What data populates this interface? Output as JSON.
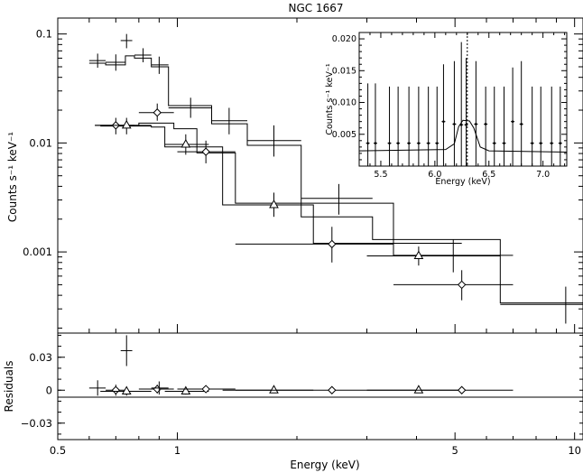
{
  "chart_data": {
    "type": "scatter",
    "title": "NGC 1667",
    "xlabel": "Energy (keV)",
    "ylabel": "Counts s⁻¹ keV⁻¹",
    "xscale": "log",
    "yscale": "log",
    "xlim": [
      0.5,
      10.5
    ],
    "ylim": [
      0.00018,
      0.14
    ],
    "xticks": [
      {
        "v": 0.5,
        "label": "0.5"
      },
      {
        "v": 1,
        "label": "1"
      },
      {
        "v": 5,
        "label": "5"
      },
      {
        "v": 10,
        "label": "10"
      }
    ],
    "yticks": [
      {
        "v": 0.1,
        "label": "0.1"
      },
      {
        "v": 0.01,
        "label": "0.01"
      },
      {
        "v": 0.001,
        "label": "0.001"
      }
    ],
    "series": [
      {
        "marker": "cross",
        "points": [
          {
            "x": 0.63,
            "y": 0.057,
            "xe": [
              0.6,
              0.66
            ],
            "ye": [
              0.049,
              0.066
            ]
          },
          {
            "x": 0.7,
            "y": 0.055,
            "xe": [
              0.66,
              0.74
            ],
            "ye": [
              0.046,
              0.065
            ]
          },
          {
            "x": 0.745,
            "y": 0.087,
            "xe": [
              0.72,
              0.77
            ],
            "ye": [
              0.074,
              0.1
            ]
          },
          {
            "x": 0.82,
            "y": 0.064,
            "xe": [
              0.78,
              0.86
            ],
            "ye": [
              0.055,
              0.074
            ]
          },
          {
            "x": 0.9,
            "y": 0.052,
            "xe": [
              0.86,
              0.95
            ],
            "ye": [
              0.043,
              0.062
            ]
          },
          {
            "x": 1.08,
            "y": 0.021,
            "xe": [
              0.95,
              1.22
            ],
            "ye": [
              0.017,
              0.026
            ]
          },
          {
            "x": 1.35,
            "y": 0.016,
            "xe": [
              1.22,
              1.5
            ],
            "ye": [
              0.012,
              0.021
            ]
          },
          {
            "x": 1.75,
            "y": 0.0105,
            "xe": [
              1.5,
              2.05
            ],
            "ye": [
              0.0075,
              0.0145
            ]
          },
          {
            "x": 2.55,
            "y": 0.0031,
            "xe": [
              2.05,
              3.1
            ],
            "ye": [
              0.0022,
              0.0042
            ]
          },
          {
            "x": 4.95,
            "y": 0.00092,
            "xe": [
              3.1,
              6.5
            ],
            "ye": [
              0.00065,
              0.0013
            ]
          },
          {
            "x": 9.5,
            "y": 0.00033,
            "xe": [
              6.5,
              10.5
            ],
            "ye": [
              0.00022,
              0.00048
            ]
          }
        ]
      },
      {
        "marker": "diamond",
        "points": [
          {
            "x": 0.7,
            "y": 0.0145,
            "xe": [
              0.62,
              0.78
            ],
            "ye": [
              0.012,
              0.017
            ]
          },
          {
            "x": 0.89,
            "y": 0.019,
            "xe": [
              0.8,
              0.98
            ],
            "ye": [
              0.016,
              0.023
            ]
          },
          {
            "x": 1.18,
            "y": 0.0083,
            "xe": [
              1.0,
              1.4
            ],
            "ye": [
              0.0065,
              0.0105
            ]
          },
          {
            "x": 2.45,
            "y": 0.00118,
            "xe": [
              1.4,
              3.5
            ],
            "ye": [
              0.0008,
              0.0017
            ]
          },
          {
            "x": 5.2,
            "y": 0.0005,
            "xe": [
              3.5,
              7.0
            ],
            "ye": [
              0.00036,
              0.00068
            ]
          }
        ]
      },
      {
        "marker": "triangle",
        "points": [
          {
            "x": 0.745,
            "y": 0.0145,
            "xe": [
              0.64,
              0.86
            ],
            "ye": [
              0.012,
              0.017
            ]
          },
          {
            "x": 1.05,
            "y": 0.0097,
            "xe": [
              0.93,
              1.2
            ],
            "ye": [
              0.0078,
              0.012
            ]
          },
          {
            "x": 1.75,
            "y": 0.0027,
            "xe": [
              1.3,
              2.2
            ],
            "ye": [
              0.0021,
              0.0035
            ]
          },
          {
            "x": 4.05,
            "y": 0.00092,
            "xe": [
              3.0,
              5.2
            ],
            "ye": [
              0.00075,
              0.00112
            ]
          }
        ]
      }
    ],
    "models": [
      {
        "edges": [
          0.6,
          0.66,
          0.74,
          0.78,
          0.86,
          0.95,
          1.22,
          1.5,
          2.05,
          3.1,
          6.5,
          10.5
        ],
        "values": [
          0.054,
          0.052,
          0.063,
          0.06,
          0.05,
          0.022,
          0.015,
          0.0095,
          0.0021,
          0.0013,
          0.00034
        ]
      },
      {
        "edges": [
          0.62,
          0.8,
          0.98,
          1.12,
          1.4,
          3.5,
          7.0
        ],
        "values": [
          0.0145,
          0.0152,
          0.0135,
          0.0081,
          0.0028,
          0.00093
        ]
      },
      {
        "edges": [
          0.64,
          0.86,
          0.93,
          1.3,
          2.2,
          5.2
        ],
        "values": [
          0.0143,
          0.014,
          0.0092,
          0.0027,
          0.0012
        ]
      }
    ],
    "residuals": {
      "ylabel": "Residuals",
      "ylim": [
        -0.045,
        0.052
      ],
      "yticks": [
        {
          "v": 0.03,
          "label": "0.03"
        },
        {
          "v": 0,
          "label": "0"
        },
        {
          "v": -0.03,
          "label": "−0.03"
        }
      ],
      "points": [
        {
          "x": 0.63,
          "y": 0.002,
          "ye": 0.007,
          "xe": [
            0.6,
            0.66
          ],
          "marker": "cross"
        },
        {
          "x": 0.7,
          "y": 0.0,
          "ye": 0.005,
          "xe": [
            0.66,
            0.74
          ],
          "marker": "diamond"
        },
        {
          "x": 0.745,
          "y": 0.036,
          "ye": 0.014,
          "xe": [
            0.72,
            0.77
          ],
          "marker": "cross"
        },
        {
          "x": 0.745,
          "y": -0.001,
          "ye": 0.004,
          "xe": [
            0.64,
            0.86
          ],
          "marker": "triangle"
        },
        {
          "x": 0.89,
          "y": 0.001,
          "ye": 0.004,
          "xe": [
            0.8,
            0.98
          ],
          "marker": "diamond"
        },
        {
          "x": 0.9,
          "y": 0.002,
          "ye": 0.006,
          "xe": [
            0.86,
            0.95
          ],
          "marker": "cross"
        },
        {
          "x": 1.05,
          "y": -0.001,
          "ye": 0.003,
          "xe": [
            0.93,
            1.2
          ],
          "marker": "triangle"
        },
        {
          "x": 1.18,
          "y": 0.001,
          "ye": 0.002,
          "xe": [
            1.0,
            1.4
          ],
          "marker": "diamond"
        },
        {
          "x": 1.75,
          "y": 0.0,
          "ye": 0.002,
          "xe": [
            1.3,
            2.2
          ],
          "marker": "triangle"
        },
        {
          "x": 2.45,
          "y": 0.0,
          "ye": 0.001,
          "xe": [
            1.4,
            3.5
          ],
          "marker": "diamond"
        },
        {
          "x": 4.05,
          "y": 0.0,
          "ye": 0.001,
          "xe": [
            3.0,
            5.2
          ],
          "marker": "triangle"
        },
        {
          "x": 5.2,
          "y": 0.0,
          "ye": 0.001,
          "xe": [
            3.5,
            7.0
          ],
          "marker": "diamond"
        }
      ]
    },
    "inset": {
      "xlabel": "Energy (keV)",
      "ylabel": "Counts s⁻¹ keV⁻¹",
      "xlim": [
        5.3,
        7.22
      ],
      "ylim": [
        0.0,
        0.021
      ],
      "xticks": [
        {
          "v": 5.5,
          "label": "5.5"
        },
        {
          "v": 6.0,
          "label": "6.0"
        },
        {
          "v": 6.5,
          "label": "6.5"
        },
        {
          "v": 7.0,
          "label": "7.0"
        }
      ],
      "yticks": [
        {
          "v": 0.005,
          "label": "0.005"
        },
        {
          "v": 0.01,
          "label": "0.010"
        },
        {
          "v": 0.015,
          "label": "0.015"
        },
        {
          "v": 0.02,
          "label": "0.020"
        }
      ],
      "line_energy": 6.3,
      "points": [
        {
          "x": 5.38,
          "y": 0.0036,
          "yhi": 0.013,
          "ylo": 0.0
        },
        {
          "x": 5.45,
          "y": 0.0036,
          "yhi": 0.013,
          "ylo": 0.0
        },
        {
          "x": 5.58,
          "y": 0.0036,
          "yhi": 0.0125,
          "ylo": 0.0
        },
        {
          "x": 5.66,
          "y": 0.0036,
          "yhi": 0.0125,
          "ylo": 0.0
        },
        {
          "x": 5.76,
          "y": 0.0036,
          "yhi": 0.0125,
          "ylo": 0.0
        },
        {
          "x": 5.85,
          "y": 0.0036,
          "yhi": 0.0125,
          "ylo": 0.0
        },
        {
          "x": 5.94,
          "y": 0.0036,
          "yhi": 0.0125,
          "ylo": 0.0
        },
        {
          "x": 6.02,
          "y": 0.0036,
          "yhi": 0.0125,
          "ylo": 0.0
        },
        {
          "x": 6.08,
          "y": 0.007,
          "yhi": 0.016,
          "ylo": 0.0
        },
        {
          "x": 6.18,
          "y": 0.0066,
          "yhi": 0.0165,
          "ylo": 0.0
        },
        {
          "x": 6.245,
          "y": 0.0065,
          "yhi": 0.0195,
          "ylo": 0.0
        },
        {
          "x": 6.29,
          "y": 0.0065,
          "yhi": 0.017,
          "ylo": 0.0
        },
        {
          "x": 6.38,
          "y": 0.0066,
          "yhi": 0.0165,
          "ylo": 0.0
        },
        {
          "x": 6.47,
          "y": 0.0066,
          "yhi": 0.0125,
          "ylo": 0.0
        },
        {
          "x": 6.55,
          "y": 0.0036,
          "yhi": 0.0125,
          "ylo": 0.0
        },
        {
          "x": 6.64,
          "y": 0.0036,
          "yhi": 0.0125,
          "ylo": 0.0
        },
        {
          "x": 6.72,
          "y": 0.007,
          "yhi": 0.0155,
          "ylo": 0.0
        },
        {
          "x": 6.8,
          "y": 0.0066,
          "yhi": 0.0165,
          "ylo": 0.0
        },
        {
          "x": 6.9,
          "y": 0.0036,
          "yhi": 0.0125,
          "ylo": 0.0
        },
        {
          "x": 6.98,
          "y": 0.0036,
          "yhi": 0.0125,
          "ylo": 0.0
        },
        {
          "x": 7.08,
          "y": 0.0036,
          "yhi": 0.0125,
          "ylo": 0.0
        },
        {
          "x": 7.16,
          "y": 0.0036,
          "yhi": 0.0125,
          "ylo": 0.0
        }
      ],
      "model": [
        [
          5.3,
          0.0024
        ],
        [
          6.1,
          0.0026
        ],
        [
          6.18,
          0.0035
        ],
        [
          6.22,
          0.0062
        ],
        [
          6.26,
          0.0072
        ],
        [
          6.32,
          0.0071
        ],
        [
          6.36,
          0.006
        ],
        [
          6.42,
          0.003
        ],
        [
          6.5,
          0.0024
        ],
        [
          7.22,
          0.0022
        ]
      ]
    }
  }
}
